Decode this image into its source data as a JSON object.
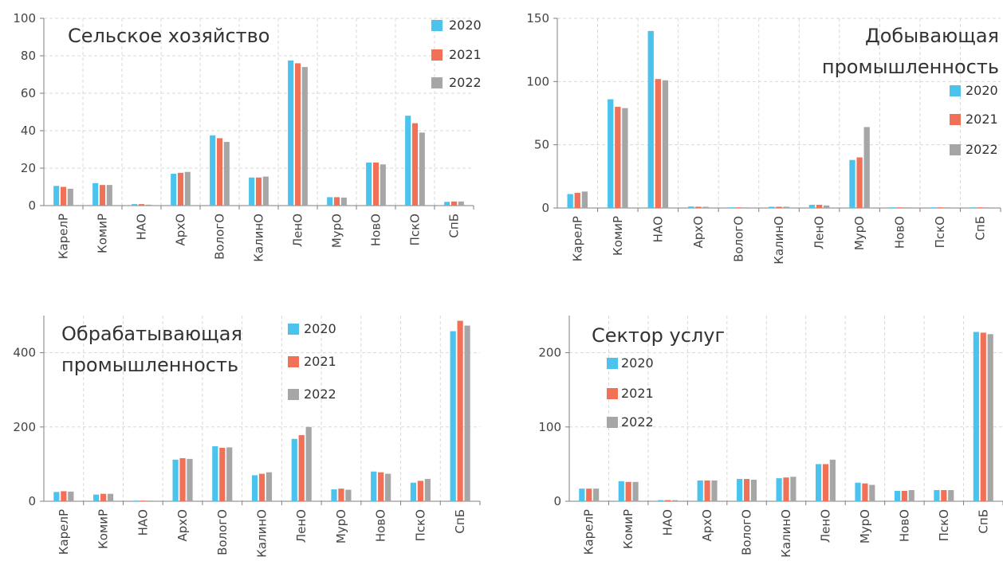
{
  "colors": {
    "2020": "#4cc3ec",
    "2021": "#f07158",
    "2022": "#a6a6a6",
    "axis": "#7f7f7f",
    "grid": "#d9d9d9"
  },
  "chart_data": [
    {
      "type": "bar",
      "title": "Сельское хозяйство",
      "categories": [
        "КарелР",
        "КомиР",
        "НАО",
        "АрхО",
        "ВологО",
        "КалинО",
        "ЛенО",
        "МурО",
        "НовО",
        "ПскО",
        "СпБ"
      ],
      "series": [
        {
          "name": "2020",
          "values": [
            10.5,
            12,
            0.8,
            17,
            37.5,
            15,
            77.5,
            4.5,
            23,
            48,
            2
          ]
        },
        {
          "name": "2021",
          "values": [
            10,
            11,
            0.8,
            17.5,
            36,
            15,
            76,
            4.5,
            23,
            44,
            2.2
          ]
        },
        {
          "name": "2022",
          "values": [
            9,
            11,
            0.5,
            18,
            34,
            15.5,
            74,
            4.3,
            22,
            39,
            2.2
          ]
        }
      ],
      "ylim": [
        0,
        100
      ],
      "yticks": [
        "0",
        "20",
        "40",
        "60",
        "80",
        "100"
      ],
      "ytick_values": [
        0,
        20,
        40,
        60,
        80,
        100
      ],
      "legend": "top-right"
    },
    {
      "type": "bar",
      "title": "Добывающая промышленность",
      "title_lines": [
        "Добывающая",
        "промышленность"
      ],
      "categories": [
        "КарелР",
        "КомиР",
        "НАО",
        "АрхО",
        "ВологО",
        "КалинО",
        "ЛенО",
        "МурО",
        "НовО",
        "ПскО",
        "СпБ"
      ],
      "series": [
        {
          "name": "2020",
          "values": [
            11,
            86,
            140,
            1.2,
            0.2,
            1,
            2.5,
            38,
            0.2,
            0.2,
            0.2
          ]
        },
        {
          "name": "2021",
          "values": [
            12,
            80,
            102,
            1,
            0.2,
            1,
            2.5,
            40,
            0.2,
            0.2,
            0.2
          ]
        },
        {
          "name": "2022",
          "values": [
            13,
            79,
            101,
            1,
            0.2,
            1,
            2,
            64,
            0.2,
            0.2,
            0.3
          ]
        }
      ],
      "ylim": [
        0,
        150
      ],
      "yticks": [
        "0",
        "50",
        "100",
        "150"
      ],
      "ytick_values": [
        0,
        50,
        100,
        150
      ],
      "legend": "right"
    },
    {
      "type": "bar",
      "title": "Обрабатывающая промышленность",
      "title_lines": [
        "Обрабатывающая",
        "промышленность"
      ],
      "categories": [
        "КарелР",
        "КомиР",
        "НАО",
        "АрхО",
        "ВологО",
        "КалинО",
        "ЛенО",
        "МурО",
        "НовО",
        "ПскО",
        "СпБ"
      ],
      "series": [
        {
          "name": "2020",
          "values": [
            25,
            18,
            0.5,
            112,
            148,
            70,
            168,
            32,
            80,
            50,
            458
          ]
        },
        {
          "name": "2021",
          "values": [
            27,
            20,
            0.5,
            116,
            144,
            74,
            178,
            34,
            78,
            55,
            486
          ]
        },
        {
          "name": "2022",
          "values": [
            26,
            20,
            0.5,
            114,
            145,
            78,
            200,
            31,
            74,
            60,
            473
          ]
        }
      ],
      "ylim": [
        0,
        500
      ],
      "yticks": [
        "0",
        "200",
        "400"
      ],
      "ytick_values": [
        0,
        200,
        400
      ],
      "legend": "top-right"
    },
    {
      "type": "bar",
      "title": "Сектор услуг",
      "categories": [
        "КарелР",
        "КомиР",
        "НАО",
        "АрхО",
        "ВологО",
        "КалинО",
        "ЛенО",
        "МурО",
        "НовО",
        "ПскО",
        "СпБ"
      ],
      "series": [
        {
          "name": "2020",
          "values": [
            17,
            27,
            1.5,
            28,
            30,
            31,
            50,
            25,
            14,
            15,
            228
          ]
        },
        {
          "name": "2021",
          "values": [
            17,
            26,
            1.5,
            28,
            30,
            32,
            50,
            24,
            14,
            15,
            227
          ]
        },
        {
          "name": "2022",
          "values": [
            17,
            26,
            1.5,
            28,
            29,
            33,
            56,
            22,
            15,
            15,
            225
          ]
        }
      ],
      "ylim": [
        0,
        250
      ],
      "yticks": [
        "0",
        "100",
        "200"
      ],
      "ytick_values": [
        0,
        100,
        200
      ],
      "legend": "top-left"
    }
  ]
}
